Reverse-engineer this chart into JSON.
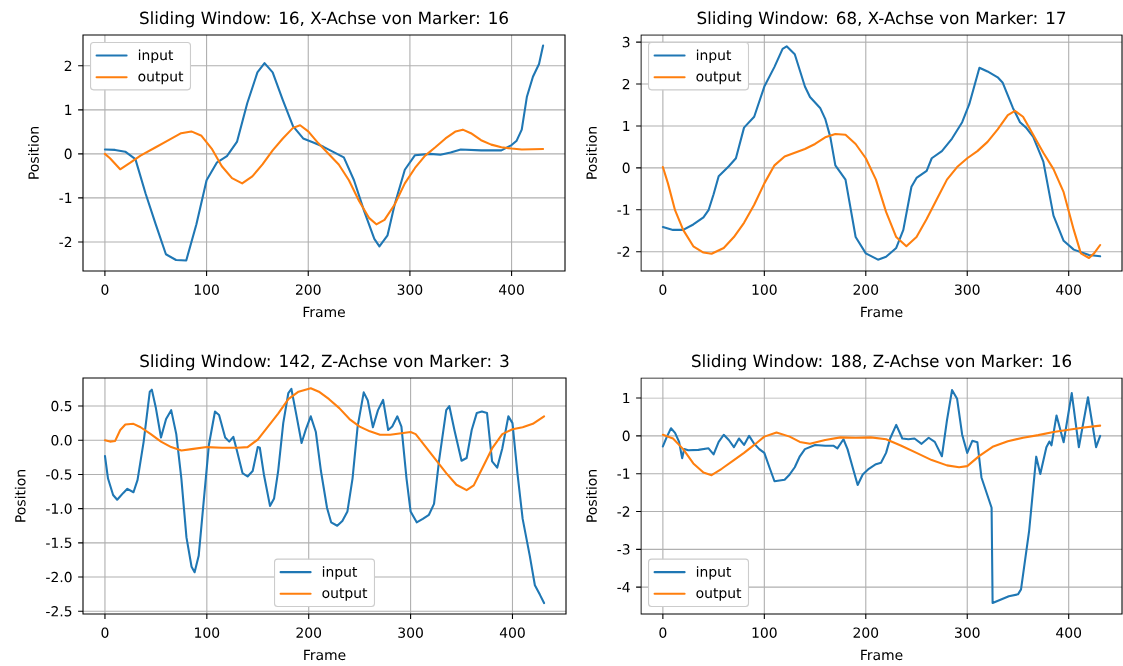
{
  "chart_data": [
    {
      "type": "line",
      "title": "Sliding Window: 16, X-Achse von Marker: 16",
      "xlabel": "Frame",
      "ylabel": "Position",
      "xlim": [
        -21.55,
        452.55
      ],
      "ylim": [
        -2.66,
        2.7
      ],
      "xticks": [
        0,
        100,
        200,
        300,
        400
      ],
      "yticks": [
        -2,
        -1,
        0,
        1,
        2
      ],
      "grid": true,
      "legend": "top left",
      "series": [
        {
          "name": "input",
          "color": "#1f77b4",
          "x": [
            0,
            10,
            20,
            30,
            40,
            50,
            60,
            70,
            80,
            90,
            100,
            110,
            120,
            130,
            140,
            150,
            157,
            165,
            175,
            185,
            195,
            205,
            215,
            225,
            235,
            245,
            255,
            265,
            270,
            278,
            285,
            295,
            305,
            320,
            330,
            340,
            350,
            370,
            390,
            400,
            405,
            410,
            415,
            421,
            427,
            431
          ],
          "values": [
            0.1,
            0.09,
            0.05,
            -0.12,
            -0.9,
            -1.6,
            -2.28,
            -2.41,
            -2.42,
            -1.6,
            -0.6,
            -0.2,
            -0.05,
            0.28,
            1.15,
            1.85,
            2.06,
            1.85,
            1.22,
            0.63,
            0.35,
            0.26,
            0.16,
            0.04,
            -0.08,
            -0.6,
            -1.3,
            -1.93,
            -2.1,
            -1.85,
            -1.15,
            -0.36,
            -0.03,
            0.0,
            -0.02,
            0.03,
            0.1,
            0.08,
            0.08,
            0.2,
            0.3,
            0.55,
            1.29,
            1.75,
            2.04,
            2.46
          ]
        },
        {
          "name": "output",
          "color": "#ff7f0e",
          "x": [
            0,
            5,
            15,
            25,
            35,
            50,
            60,
            75,
            85,
            95,
            105,
            115,
            125,
            135,
            145,
            155,
            165,
            175,
            185,
            192,
            200,
            210,
            220,
            230,
            240,
            250,
            260,
            267,
            275,
            285,
            295,
            305,
            315,
            325,
            335,
            345,
            352,
            360,
            370,
            380,
            390,
            400,
            410,
            431
          ],
          "values": [
            0.0,
            -0.1,
            -0.35,
            -0.2,
            -0.04,
            0.15,
            0.28,
            0.47,
            0.51,
            0.41,
            0.12,
            -0.28,
            -0.55,
            -0.67,
            -0.51,
            -0.24,
            0.08,
            0.35,
            0.59,
            0.65,
            0.51,
            0.24,
            0.0,
            -0.24,
            -0.6,
            -1.07,
            -1.46,
            -1.6,
            -1.5,
            -1.15,
            -0.67,
            -0.32,
            -0.04,
            0.15,
            0.35,
            0.51,
            0.55,
            0.47,
            0.31,
            0.21,
            0.15,
            0.12,
            0.1,
            0.11
          ]
        }
      ]
    },
    {
      "type": "line",
      "title": "Sliding Window: 68, X-Achse von Marker: 17",
      "xlabel": "Frame",
      "ylabel": "Position",
      "xlim": [
        -21.55,
        452.55
      ],
      "ylim": [
        -2.46,
        3.17
      ],
      "xticks": [
        0,
        100,
        200,
        300,
        400
      ],
      "yticks": [
        -2,
        -1,
        0,
        1,
        2,
        3
      ],
      "grid": true,
      "legend": "top left",
      "series": [
        {
          "name": "input",
          "color": "#1f77b4",
          "x": [
            0,
            10,
            20,
            30,
            40,
            45,
            50,
            55,
            65,
            72,
            80,
            90,
            100,
            110,
            118,
            122,
            130,
            140,
            145,
            155,
            160,
            165,
            170,
            180,
            190,
            200,
            212,
            220,
            230,
            237,
            245,
            250,
            260,
            265,
            275,
            285,
            295,
            302,
            312,
            320,
            330,
            335,
            345,
            352,
            358,
            365,
            375,
            385,
            395,
            405,
            420,
            431
          ],
          "values": [
            -1.41,
            -1.48,
            -1.48,
            -1.35,
            -1.18,
            -1.01,
            -0.63,
            -0.2,
            0.04,
            0.23,
            0.96,
            1.22,
            1.94,
            2.41,
            2.84,
            2.9,
            2.71,
            1.94,
            1.69,
            1.43,
            1.17,
            0.74,
            0.06,
            -0.28,
            -1.65,
            -2.04,
            -2.19,
            -2.12,
            -1.91,
            -1.48,
            -0.45,
            -0.24,
            -0.07,
            0.23,
            0.4,
            0.7,
            1.09,
            1.52,
            2.39,
            2.3,
            2.16,
            2.03,
            1.43,
            1.09,
            0.96,
            0.74,
            0.15,
            -1.14,
            -1.74,
            -1.95,
            -2.08,
            -2.11
          ]
        },
        {
          "name": "output",
          "color": "#ff7f0e",
          "x": [
            0,
            5,
            12,
            20,
            30,
            40,
            48,
            60,
            70,
            80,
            90,
            100,
            110,
            120,
            130,
            140,
            150,
            160,
            170,
            180,
            190,
            200,
            210,
            220,
            230,
            240,
            250,
            260,
            270,
            280,
            290,
            300,
            310,
            320,
            330,
            340,
            347,
            355,
            365,
            375,
            385,
            395,
            405,
            412,
            420,
            425,
            431
          ],
          "values": [
            0.02,
            -0.37,
            -1.01,
            -1.48,
            -1.87,
            -2.02,
            -2.05,
            -1.91,
            -1.65,
            -1.31,
            -0.88,
            -0.37,
            0.06,
            0.27,
            0.36,
            0.45,
            0.57,
            0.73,
            0.81,
            0.79,
            0.57,
            0.23,
            -0.28,
            -1.05,
            -1.65,
            -1.87,
            -1.65,
            -1.22,
            -0.75,
            -0.28,
            0.02,
            0.23,
            0.4,
            0.62,
            0.92,
            1.26,
            1.36,
            1.22,
            0.79,
            0.36,
            -0.03,
            -0.58,
            -1.48,
            -2.04,
            -2.15,
            -2.04,
            -1.84
          ]
        }
      ]
    },
    {
      "type": "line",
      "title": "Sliding Window: 142, Z-Achse von Marker: 3",
      "xlabel": "Frame",
      "ylabel": "Position",
      "xlim": [
        -21.55,
        452.55
      ],
      "ylim": [
        -2.54,
        0.91
      ],
      "xticks": [
        0,
        100,
        200,
        300,
        400
      ],
      "yticks": [
        -2.5,
        {
          "value": -2,
          "label": "-2.0"
        },
        -1.5,
        {
          "value": -1,
          "label": "-1.0"
        },
        -0.5,
        {
          "value": 0,
          "label": "0.0"
        },
        0.5
      ],
      "grid": true,
      "legend": "bottom",
      "series": [
        {
          "name": "input",
          "color": "#1f77b4",
          "x": [
            0,
            3,
            8,
            12,
            18,
            22,
            28,
            32,
            38,
            44,
            46,
            50,
            55,
            60,
            65,
            70,
            75,
            80,
            85,
            88,
            92,
            97,
            102,
            108,
            112,
            118,
            122,
            126,
            130,
            135,
            140,
            145,
            150,
            152,
            156,
            162,
            166,
            170,
            175,
            180,
            183,
            188,
            193,
            197,
            202,
            207,
            212,
            218,
            222,
            228,
            233,
            238,
            243,
            248,
            254,
            258,
            263,
            268,
            273,
            278,
            282,
            287,
            291,
            296,
            300,
            306,
            312,
            318,
            323,
            328,
            335,
            338,
            343,
            350,
            355,
            360,
            365,
            370,
            375,
            380,
            385,
            390,
            396,
            400,
            405,
            410,
            417,
            422,
            427,
            431
          ],
          "values": [
            -0.23,
            -0.56,
            -0.8,
            -0.87,
            -0.77,
            -0.71,
            -0.76,
            -0.58,
            -0.02,
            0.71,
            0.74,
            0.47,
            0.04,
            0.31,
            0.44,
            0.09,
            -0.56,
            -1.42,
            -1.85,
            -1.93,
            -1.69,
            -0.88,
            -0.07,
            0.42,
            0.37,
            0.04,
            -0.02,
            0.05,
            -0.18,
            -0.48,
            -0.53,
            -0.45,
            -0.1,
            -0.11,
            -0.5,
            -0.96,
            -0.85,
            -0.45,
            0.25,
            0.69,
            0.75,
            0.36,
            -0.04,
            0.15,
            0.35,
            0.12,
            -0.45,
            -0.99,
            -1.2,
            -1.25,
            -1.18,
            -1.04,
            -0.56,
            0.2,
            0.7,
            0.58,
            0.19,
            0.44,
            0.59,
            0.15,
            0.2,
            0.35,
            0.2,
            -0.56,
            -1.04,
            -1.2,
            -1.15,
            -1.09,
            -0.93,
            -0.29,
            0.44,
            0.5,
            0.15,
            -0.3,
            -0.26,
            0.15,
            0.4,
            0.42,
            0.4,
            -0.31,
            -0.4,
            -0.12,
            0.35,
            0.25,
            -0.5,
            -1.15,
            -1.69,
            -2.12,
            -2.26,
            -2.38
          ]
        },
        {
          "name": "output",
          "color": "#ff7f0e",
          "x": [
            0,
            5,
            10,
            15,
            20,
            28,
            35,
            45,
            55,
            65,
            75,
            85,
            100,
            115,
            130,
            140,
            150,
            160,
            170,
            180,
            190,
            202,
            210,
            220,
            230,
            240,
            250,
            260,
            270,
            280,
            290,
            300,
            305,
            315,
            325,
            335,
            345,
            355,
            362,
            370,
            380,
            390,
            400,
            410,
            420,
            431
          ],
          "values": [
            0.0,
            -0.02,
            -0.01,
            0.15,
            0.23,
            0.24,
            0.19,
            0.09,
            -0.02,
            -0.1,
            -0.15,
            -0.13,
            -0.1,
            -0.11,
            -0.11,
            -0.1,
            0.01,
            0.2,
            0.39,
            0.6,
            0.71,
            0.76,
            0.71,
            0.6,
            0.47,
            0.31,
            0.2,
            0.13,
            0.08,
            0.08,
            0.1,
            0.12,
            0.09,
            -0.1,
            -0.29,
            -0.48,
            -0.65,
            -0.73,
            -0.66,
            -0.42,
            -0.12,
            0.09,
            0.16,
            0.19,
            0.24,
            0.35
          ]
        }
      ]
    },
    {
      "type": "line",
      "title": "Sliding Window: 188, Z-Achse von Marker: 16",
      "xlabel": "Frame",
      "ylabel": "Position",
      "xlim": [
        -21.55,
        452.55
      ],
      "ylim": [
        -4.71,
        1.53
      ],
      "xticks": [
        0,
        100,
        200,
        300,
        400
      ],
      "yticks": [
        -4,
        -3,
        -2,
        -1,
        0,
        1
      ],
      "grid": true,
      "legend": "bottom left",
      "series": [
        {
          "name": "input",
          "color": "#1f77b4",
          "x": [
            0,
            4,
            8,
            12,
            16,
            18,
            19,
            21,
            25,
            35,
            45,
            50,
            55,
            60,
            65,
            70,
            75,
            80,
            85,
            90,
            95,
            100,
            105,
            110,
            120,
            125,
            130,
            135,
            140,
            150,
            160,
            168,
            172,
            178,
            182,
            188,
            192,
            197,
            203,
            210,
            215,
            220,
            224,
            230,
            236,
            242,
            248,
            255,
            262,
            268,
            275,
            280,
            285,
            290,
            295,
            300,
            305,
            310,
            314,
            324,
            325,
            341,
            350,
            353,
            361,
            368,
            372,
            378,
            381,
            383,
            388,
            395,
            403,
            410,
            419,
            427,
            431
          ],
          "values": [
            -0.28,
            -0.02,
            0.2,
            0.08,
            -0.16,
            -0.45,
            -0.59,
            -0.35,
            -0.38,
            -0.37,
            -0.33,
            -0.49,
            -0.16,
            0.03,
            -0.11,
            -0.3,
            -0.07,
            -0.24,
            0.0,
            -0.21,
            -0.35,
            -0.45,
            -0.83,
            -1.2,
            -1.16,
            -1.02,
            -0.83,
            -0.54,
            -0.35,
            -0.24,
            -0.26,
            -0.26,
            -0.33,
            -0.09,
            -0.35,
            -0.92,
            -1.3,
            -1.02,
            -0.87,
            -0.75,
            -0.71,
            -0.45,
            -0.07,
            0.29,
            -0.07,
            -0.09,
            -0.07,
            -0.21,
            -0.05,
            -0.16,
            -0.54,
            0.41,
            1.21,
            0.98,
            0.03,
            -0.45,
            -0.13,
            -0.17,
            -1.1,
            -1.9,
            -4.42,
            -4.24,
            -4.19,
            -4.06,
            -2.51,
            -0.55,
            -1.01,
            -0.3,
            -0.15,
            -0.25,
            0.54,
            -0.17,
            1.13,
            -0.3,
            1.02,
            -0.3,
            0.0
          ]
        },
        {
          "name": "output",
          "color": "#ff7f0e",
          "x": [
            0,
            10,
            20,
            30,
            40,
            48,
            58,
            70,
            80,
            90,
            100,
            112,
            125,
            135,
            145,
            160,
            175,
            190,
            205,
            220,
            235,
            250,
            265,
            280,
            292,
            300,
            312,
            325,
            340,
            355,
            370,
            385,
            400,
            415,
            431
          ],
          "values": [
            0.03,
            -0.07,
            -0.35,
            -0.73,
            -0.97,
            -1.04,
            -0.87,
            -0.64,
            -0.45,
            -0.24,
            -0.02,
            0.09,
            -0.02,
            -0.16,
            -0.21,
            -0.11,
            -0.04,
            -0.05,
            -0.04,
            -0.09,
            -0.26,
            -0.45,
            -0.64,
            -0.78,
            -0.83,
            -0.8,
            -0.53,
            -0.29,
            -0.14,
            -0.05,
            0.02,
            0.1,
            0.16,
            0.22,
            0.27
          ]
        }
      ]
    }
  ]
}
